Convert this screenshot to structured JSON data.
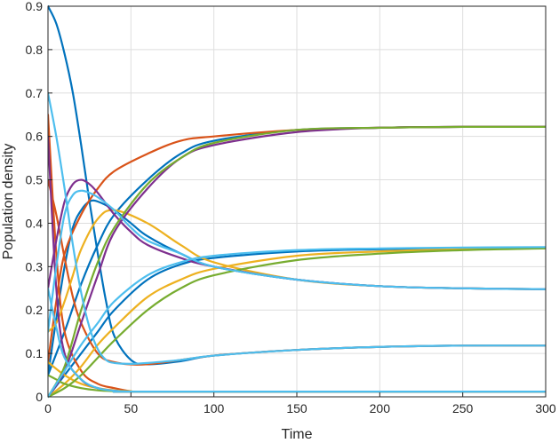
{
  "chart_data": {
    "type": "line",
    "title": "",
    "xlabel": "Time",
    "ylabel": "Population  density",
    "xlim": [
      0,
      300
    ],
    "ylim": [
      0,
      0.9
    ],
    "xticks": [
      "0",
      "50",
      "100",
      "150",
      "200",
      "250",
      "300"
    ],
    "yticks": [
      "0",
      "0.1",
      "0.2",
      "0.3",
      "0.4",
      "0.5",
      "0.6",
      "0.7",
      "0.8",
      "0.9"
    ],
    "grid": true,
    "legend": "none",
    "series": [
      {
        "color": "#0072BD",
        "x": [
          0,
          5,
          10,
          15,
          20,
          25,
          30,
          35,
          40,
          50,
          60,
          80,
          100,
          150,
          200,
          250,
          300
        ],
        "y": [
          0.9,
          0.86,
          0.79,
          0.7,
          0.58,
          0.45,
          0.33,
          0.22,
          0.14,
          0.085,
          0.075,
          0.082,
          0.095,
          0.108,
          0.115,
          0.118,
          0.118
        ]
      },
      {
        "color": "#0072BD",
        "x": [
          0,
          5,
          10,
          15,
          20,
          25,
          30,
          40,
          50,
          60,
          80,
          100,
          150,
          200,
          250,
          300
        ],
        "y": [
          0.05,
          0.18,
          0.3,
          0.39,
          0.43,
          0.45,
          0.45,
          0.43,
          0.4,
          0.37,
          0.33,
          0.3,
          0.27,
          0.255,
          0.25,
          0.248
        ]
      },
      {
        "color": "#0072BD",
        "x": [
          0,
          10,
          20,
          30,
          40,
          60,
          80,
          100,
          150,
          200,
          250,
          300
        ],
        "y": [
          0.0,
          0.05,
          0.1,
          0.15,
          0.2,
          0.27,
          0.305,
          0.32,
          0.335,
          0.34,
          0.342,
          0.343
        ]
      },
      {
        "color": "#0072BD",
        "x": [
          0,
          10,
          20,
          30,
          40,
          60,
          80,
          100,
          150,
          200,
          250,
          300
        ],
        "y": [
          0.05,
          0.15,
          0.26,
          0.35,
          0.42,
          0.5,
          0.56,
          0.59,
          0.615,
          0.62,
          0.622,
          0.622
        ]
      },
      {
        "color": "#D95319",
        "x": [
          0,
          5,
          10,
          15,
          20,
          30,
          40,
          60,
          100,
          150,
          200,
          250,
          300
        ],
        "y": [
          0.5,
          0.42,
          0.32,
          0.23,
          0.17,
          0.1,
          0.08,
          0.075,
          0.095,
          0.108,
          0.115,
          0.118,
          0.118
        ]
      },
      {
        "color": "#D95319",
        "x": [
          0,
          5,
          10,
          20,
          30,
          40,
          50,
          60,
          300
        ],
        "y": [
          0.65,
          0.33,
          0.15,
          0.06,
          0.03,
          0.02,
          0.013,
          0.012,
          0.012
        ]
      },
      {
        "color": "#D95319",
        "x": [
          0,
          5,
          10,
          20,
          30,
          40,
          60,
          80,
          100,
          150,
          200,
          250,
          300
        ],
        "y": [
          0.08,
          0.22,
          0.33,
          0.42,
          0.48,
          0.52,
          0.56,
          0.59,
          0.6,
          0.615,
          0.62,
          0.622,
          0.622
        ]
      },
      {
        "color": "#EDB120",
        "x": [
          0,
          5,
          10,
          15,
          20,
          30,
          40,
          60,
          80,
          100,
          150,
          200,
          250,
          300
        ],
        "y": [
          0.15,
          0.17,
          0.22,
          0.28,
          0.34,
          0.41,
          0.43,
          0.4,
          0.35,
          0.31,
          0.27,
          0.255,
          0.25,
          0.248
        ]
      },
      {
        "color": "#EDB120",
        "x": [
          0,
          10,
          20,
          30,
          40,
          50,
          60,
          300
        ],
        "y": [
          0.08,
          0.05,
          0.03,
          0.02,
          0.015,
          0.013,
          0.012,
          0.012
        ]
      },
      {
        "color": "#EDB120",
        "x": [
          0,
          10,
          20,
          30,
          40,
          60,
          80,
          100,
          150,
          200,
          250,
          300
        ],
        "y": [
          0.0,
          0.03,
          0.07,
          0.12,
          0.16,
          0.23,
          0.27,
          0.295,
          0.325,
          0.335,
          0.34,
          0.342
        ]
      },
      {
        "color": "#7E2F8E",
        "x": [
          0,
          5,
          10,
          15,
          20,
          25,
          30,
          40,
          50,
          60,
          80,
          100,
          150,
          200,
          250,
          300
        ],
        "y": [
          0.25,
          0.36,
          0.45,
          0.49,
          0.5,
          0.49,
          0.47,
          0.42,
          0.38,
          0.35,
          0.32,
          0.3,
          0.27,
          0.255,
          0.25,
          0.248
        ]
      },
      {
        "color": "#7E2F8E",
        "x": [
          0,
          10,
          20,
          30,
          40,
          60,
          80,
          100,
          150,
          200,
          250,
          300
        ],
        "y": [
          0.0,
          0.06,
          0.17,
          0.28,
          0.38,
          0.48,
          0.55,
          0.58,
          0.61,
          0.62,
          0.622,
          0.622
        ]
      },
      {
        "color": "#7E2F8E",
        "x": [
          0,
          5,
          10,
          20,
          30,
          40,
          50,
          60,
          300
        ],
        "y": [
          0.6,
          0.25,
          0.1,
          0.04,
          0.02,
          0.014,
          0.012,
          0.012,
          0.012
        ]
      },
      {
        "color": "#77AC30",
        "x": [
          0,
          10,
          20,
          30,
          40,
          60,
          80,
          100,
          150,
          200,
          250,
          300
        ],
        "y": [
          0.0,
          0.02,
          0.05,
          0.09,
          0.13,
          0.2,
          0.25,
          0.28,
          0.315,
          0.33,
          0.338,
          0.342
        ]
      },
      {
        "color": "#77AC30",
        "x": [
          0,
          10,
          20,
          30,
          40,
          60,
          80,
          100,
          150,
          200,
          250,
          300
        ],
        "y": [
          0.0,
          0.07,
          0.2,
          0.31,
          0.39,
          0.49,
          0.55,
          0.585,
          0.615,
          0.62,
          0.622,
          0.622
        ]
      },
      {
        "color": "#77AC30",
        "x": [
          0,
          5,
          10,
          20,
          30,
          40,
          50,
          60,
          300
        ],
        "y": [
          0.05,
          0.04,
          0.03,
          0.02,
          0.015,
          0.013,
          0.012,
          0.012,
          0.012
        ]
      },
      {
        "color": "#4DBEEE",
        "x": [
          0,
          5,
          10,
          15,
          20,
          25,
          30,
          35,
          40,
          50,
          60,
          80,
          100,
          150,
          200,
          250,
          300
        ],
        "y": [
          0.7,
          0.6,
          0.48,
          0.35,
          0.24,
          0.16,
          0.11,
          0.085,
          0.078,
          0.076,
          0.078,
          0.085,
          0.095,
          0.108,
          0.115,
          0.118,
          0.118
        ]
      },
      {
        "color": "#4DBEEE",
        "x": [
          0,
          5,
          10,
          15,
          20,
          25,
          30,
          40,
          50,
          60,
          80,
          100,
          150,
          200,
          250,
          300
        ],
        "y": [
          0.15,
          0.3,
          0.42,
          0.465,
          0.475,
          0.47,
          0.46,
          0.43,
          0.39,
          0.36,
          0.33,
          0.3,
          0.27,
          0.255,
          0.25,
          0.248
        ]
      },
      {
        "color": "#4DBEEE",
        "x": [
          0,
          10,
          20,
          30,
          40,
          60,
          80,
          100,
          150,
          200,
          250,
          300
        ],
        "y": [
          0.0,
          0.06,
          0.12,
          0.17,
          0.22,
          0.28,
          0.31,
          0.325,
          0.338,
          0.342,
          0.344,
          0.345
        ]
      },
      {
        "color": "#4DBEEE",
        "x": [
          0,
          5,
          10,
          20,
          30,
          40,
          50,
          60,
          300
        ],
        "y": [
          0.25,
          0.16,
          0.09,
          0.04,
          0.02,
          0.014,
          0.012,
          0.012,
          0.012
        ]
      }
    ]
  }
}
